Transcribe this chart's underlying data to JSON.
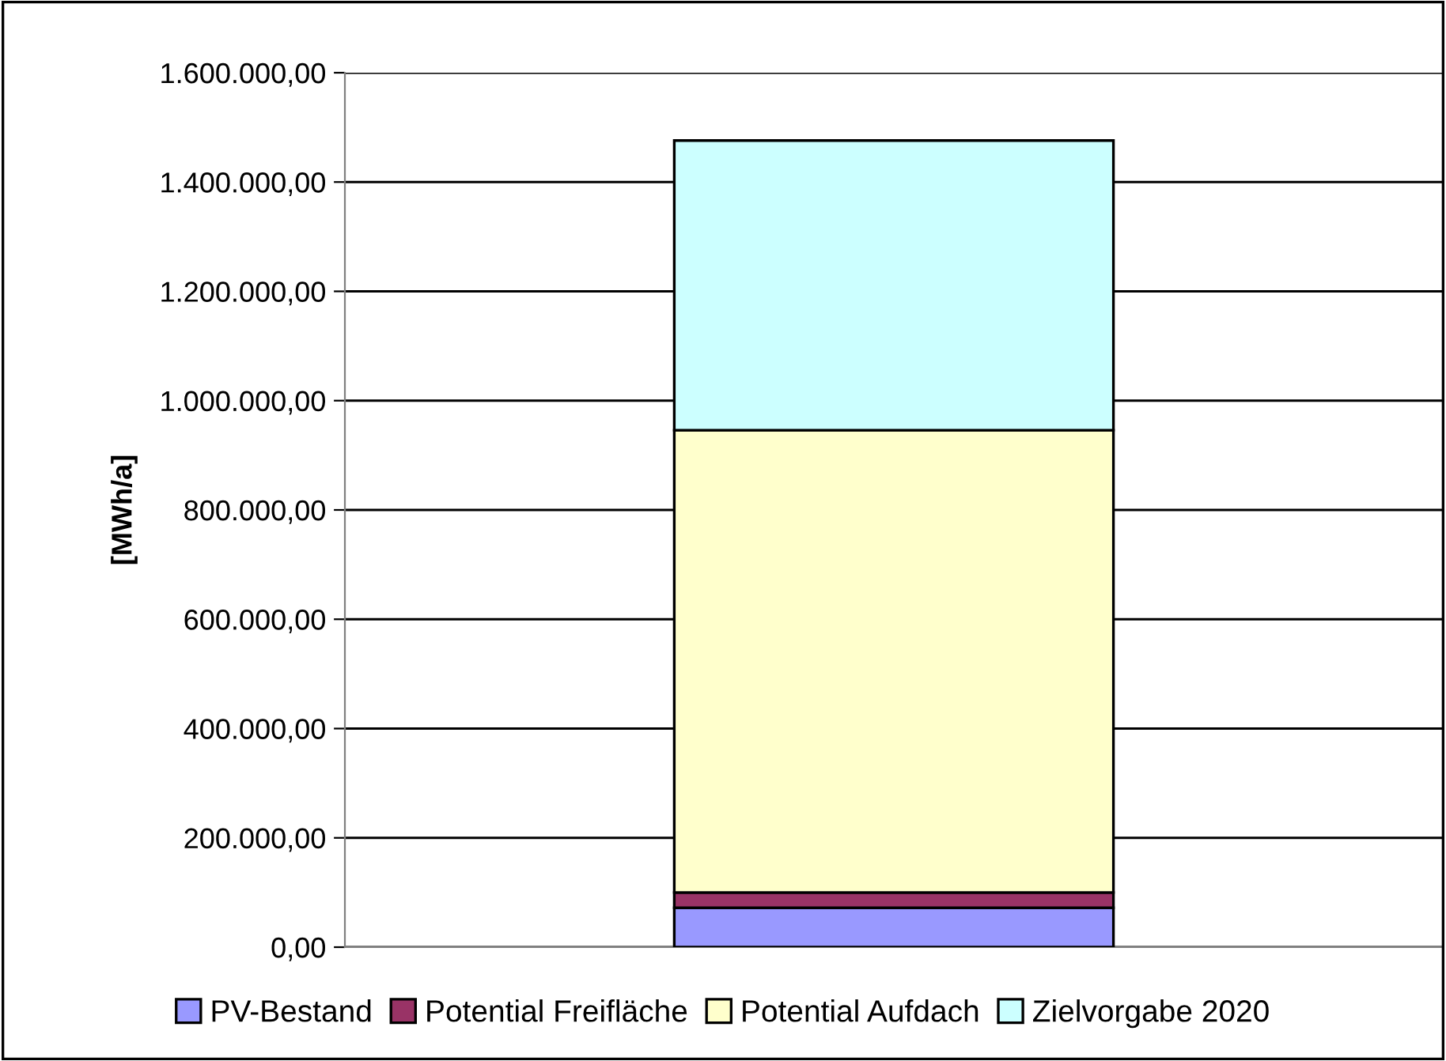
{
  "chart_data": {
    "type": "bar",
    "stacked": true,
    "ylabel": "[MWh/a]",
    "categories": [
      null
    ],
    "series": [
      {
        "name": "PV-Bestand",
        "color": "#9999ff",
        "values": [
          72000
        ]
      },
      {
        "name": "Potential Freifläche",
        "color": "#993366",
        "values": [
          28000
        ]
      },
      {
        "name": "Potential Aufdach",
        "color": "#ffffcc",
        "values": [
          846000
        ]
      },
      {
        "name": "Zielvorgabe 2020",
        "color": "#ccffff",
        "values": [
          530000
        ]
      }
    ],
    "ylim": [
      0,
      1600000
    ],
    "yticks": [
      {
        "value": 0,
        "label": "0,00"
      },
      {
        "value": 200000,
        "label": "200.000,00"
      },
      {
        "value": 400000,
        "label": "400.000,00"
      },
      {
        "value": 600000,
        "label": "600.000,00"
      },
      {
        "value": 800000,
        "label": "800.000,00"
      },
      {
        "value": 1000000,
        "label": "1.000.000,00"
      },
      {
        "value": 1200000,
        "label": "1.200.000,00"
      },
      {
        "value": 1400000,
        "label": "1.400.000,00"
      },
      {
        "value": 1600000,
        "label": "1.600.000,00"
      }
    ],
    "grid": "y",
    "legend": "bottom"
  }
}
